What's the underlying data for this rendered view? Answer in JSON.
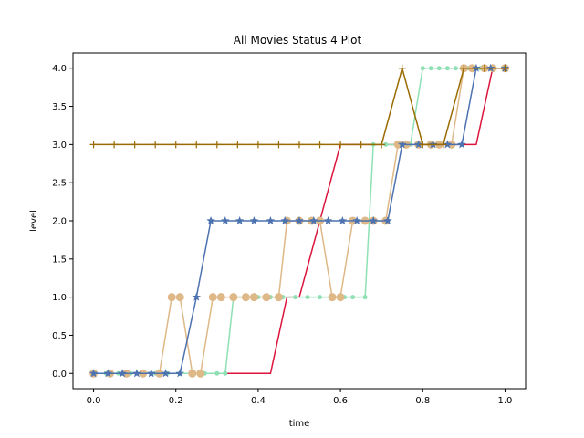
{
  "chart_data": {
    "type": "line",
    "title": "All Movies Status 4 Plot",
    "xlabel": "time",
    "ylabel": "level",
    "xlim": [
      -0.05,
      1.05
    ],
    "ylim": [
      -0.2,
      4.2
    ],
    "x_ticks": [
      0.0,
      0.2,
      0.4,
      0.6,
      0.8,
      1.0
    ],
    "x_tick_labels": [
      "0.0",
      "0.2",
      "0.4",
      "0.6",
      "0.8",
      "1.0"
    ],
    "y_ticks": [
      0.0,
      0.5,
      1.0,
      1.5,
      2.0,
      2.5,
      3.0,
      3.5,
      4.0
    ],
    "y_tick_labels": [
      "0.0",
      "0.5",
      "1.0",
      "1.5",
      "2.0",
      "2.5",
      "3.0",
      "3.5",
      "4.0"
    ],
    "grid": false,
    "legend": false,
    "series": [
      {
        "color": "#dc143c",
        "marker": "none",
        "x": [
          0.0,
          0.1,
          0.2,
          0.32,
          0.43,
          0.47,
          0.5,
          0.6,
          0.7,
          0.8,
          0.93,
          0.97,
          1.0
        ],
        "y": [
          0,
          0,
          0,
          0,
          0,
          1,
          1,
          3,
          3,
          3,
          3,
          4,
          4
        ]
      },
      {
        "color": "#8fe0b4",
        "marker": "dot",
        "x": [
          0.0,
          0.03,
          0.06,
          0.09,
          0.12,
          0.15,
          0.18,
          0.21,
          0.24,
          0.27,
          0.3,
          0.32,
          0.34,
          0.37,
          0.4,
          0.43,
          0.46,
          0.49,
          0.52,
          0.55,
          0.58,
          0.61,
          0.63,
          0.66,
          0.68,
          0.71,
          0.74,
          0.77,
          0.8,
          0.82,
          0.84,
          0.86,
          0.88,
          0.91,
          0.94,
          0.97,
          1.0
        ],
        "y": [
          0,
          0,
          0,
          0,
          0,
          0,
          0,
          0,
          0,
          0,
          0,
          0,
          1,
          1,
          1,
          1,
          1,
          1,
          1,
          1,
          1,
          1,
          1,
          1,
          3,
          3,
          3,
          3,
          4,
          4,
          4,
          4,
          4,
          4,
          4,
          4,
          4
        ]
      },
      {
        "color": "#deb887",
        "marker": "circle",
        "x": [
          0.0,
          0.04,
          0.08,
          0.12,
          0.16,
          0.19,
          0.21,
          0.24,
          0.26,
          0.29,
          0.31,
          0.34,
          0.37,
          0.39,
          0.42,
          0.45,
          0.47,
          0.5,
          0.53,
          0.55,
          0.58,
          0.6,
          0.63,
          0.66,
          0.68,
          0.71,
          0.74,
          0.76,
          0.79,
          0.82,
          0.84,
          0.87,
          0.9,
          0.92,
          0.95,
          0.97,
          1.0
        ],
        "y": [
          0,
          0,
          0,
          0,
          0,
          1,
          1,
          0,
          0,
          1,
          1,
          1,
          1,
          1,
          1,
          1,
          2,
          2,
          2,
          2,
          1,
          1,
          2,
          2,
          2,
          2,
          3,
          3,
          3,
          3,
          3,
          3,
          4,
          4,
          4,
          4,
          4
        ]
      },
      {
        "color": "#4c72b0",
        "marker": "star",
        "x": [
          0.0,
          0.035,
          0.07,
          0.105,
          0.14,
          0.175,
          0.21,
          0.25,
          0.285,
          0.32,
          0.355,
          0.39,
          0.43,
          0.465,
          0.5,
          0.535,
          0.57,
          0.605,
          0.64,
          0.68,
          0.715,
          0.75,
          0.79,
          0.825,
          0.86,
          0.895,
          0.93,
          0.965,
          1.0
        ],
        "y": [
          0,
          0,
          0,
          0,
          0,
          0,
          0,
          1,
          2,
          2,
          2,
          2,
          2,
          2,
          2,
          2,
          2,
          2,
          2,
          2,
          2,
          3,
          3,
          3,
          3,
          3,
          4,
          4,
          4
        ]
      },
      {
        "color": "#9a6b00",
        "marker": "plus",
        "x": [
          0.0,
          0.05,
          0.1,
          0.15,
          0.2,
          0.25,
          0.3,
          0.35,
          0.4,
          0.45,
          0.5,
          0.55,
          0.6,
          0.65,
          0.7,
          0.75,
          0.8,
          0.85,
          0.9,
          0.95,
          1.0
        ],
        "y": [
          3,
          3,
          3,
          3,
          3,
          3,
          3,
          3,
          3,
          3,
          3,
          3,
          3,
          3,
          3,
          4,
          3,
          3,
          4,
          4,
          4
        ]
      }
    ]
  }
}
